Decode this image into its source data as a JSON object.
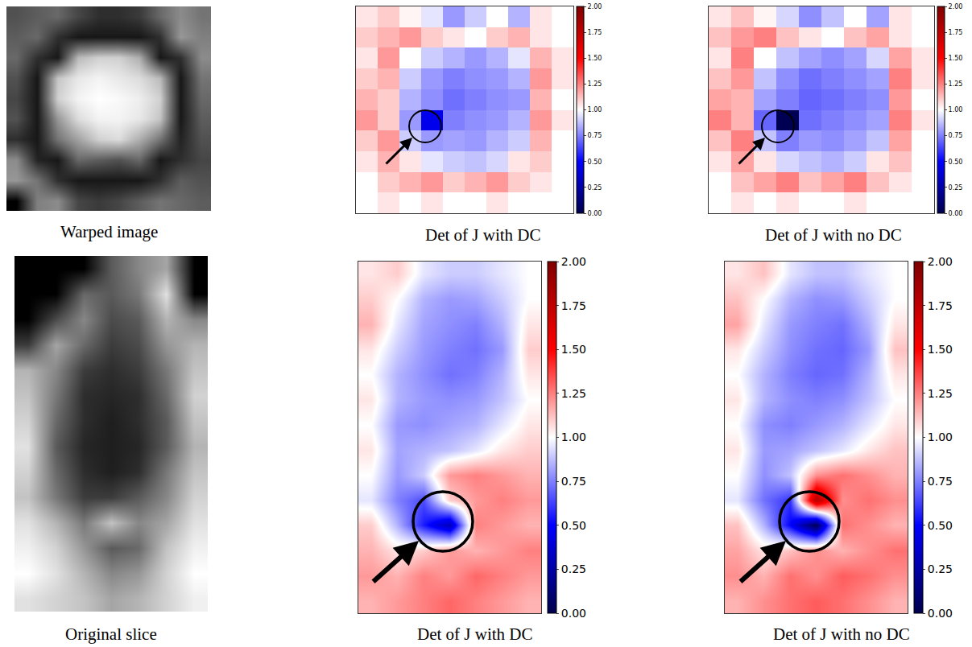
{
  "chart_data": [
    {
      "type": "heatmap",
      "title": "Warped image",
      "color": "gray",
      "tick_labels": false,
      "cells": [
        [
          90,
          100,
          110,
          80,
          60,
          60,
          70,
          110,
          140,
          120
        ],
        [
          100,
          110,
          60,
          40,
          40,
          40,
          40,
          60,
          150,
          130
        ],
        [
          110,
          60,
          40,
          180,
          200,
          200,
          170,
          40,
          60,
          140
        ],
        [
          90,
          40,
          190,
          220,
          230,
          220,
          210,
          180,
          40,
          120
        ],
        [
          80,
          40,
          200,
          230,
          240,
          235,
          225,
          200,
          40,
          110
        ],
        [
          90,
          40,
          150,
          210,
          230,
          230,
          220,
          190,
          40,
          100
        ],
        [
          60,
          40,
          120,
          160,
          200,
          210,
          170,
          120,
          50,
          90
        ],
        [
          140,
          50,
          40,
          110,
          100,
          90,
          110,
          40,
          60,
          80
        ],
        [
          150,
          120,
          60,
          40,
          40,
          40,
          40,
          60,
          100,
          90
        ],
        [
          20,
          130,
          140,
          80,
          70,
          80,
          100,
          120,
          110,
          100
        ]
      ]
    },
    {
      "type": "heatmap",
      "title": "Det of J with DC",
      "color": "seismic",
      "tick_labels": false,
      "zlim": [
        0,
        2
      ],
      "zticks": [
        {
          "value": 0,
          "label": "0.00"
        },
        {
          "value": 0.25,
          "label": "0.25"
        },
        {
          "value": 0.5,
          "label": "0.50"
        },
        {
          "value": 0.75,
          "label": "0.75"
        },
        {
          "value": 1,
          "label": "1.00"
        },
        {
          "value": 1.25,
          "label": "1.25"
        },
        {
          "value": 1.5,
          "label": "1.50"
        },
        {
          "value": 1.75,
          "label": "1.75"
        },
        {
          "value": 2,
          "label": "2.00"
        }
      ],
      "cells": [
        [
          1.05,
          1.1,
          1.02,
          0.95,
          0.8,
          0.9,
          1.0,
          0.85,
          1.05,
          1.0
        ],
        [
          1.1,
          1.15,
          1.2,
          1.1,
          1.05,
          1.0,
          1.1,
          1.15,
          1.05,
          1.0
        ],
        [
          1.05,
          1.2,
          1.0,
          0.9,
          0.85,
          0.8,
          0.85,
          0.95,
          1.15,
          1.05
        ],
        [
          1.1,
          1.15,
          0.9,
          0.8,
          0.75,
          0.78,
          0.8,
          0.85,
          1.2,
          1.05
        ],
        [
          1.15,
          1.1,
          0.85,
          0.78,
          0.72,
          0.75,
          0.78,
          0.8,
          1.15,
          1.0
        ],
        [
          1.2,
          1.1,
          0.8,
          0.45,
          0.75,
          0.78,
          0.8,
          0.85,
          1.2,
          1.05
        ],
        [
          1.1,
          1.2,
          0.9,
          0.8,
          0.82,
          0.8,
          0.85,
          0.9,
          1.15,
          1.0
        ],
        [
          1.05,
          1.15,
          1.05,
          0.95,
          0.9,
          0.88,
          0.92,
          1.05,
          1.1,
          1.0
        ],
        [
          1.0,
          1.1,
          1.15,
          1.2,
          1.1,
          1.15,
          1.2,
          1.1,
          1.05,
          1.0
        ],
        [
          1.0,
          1.05,
          1.0,
          1.05,
          1.0,
          1.0,
          1.05,
          1.0,
          1.0,
          1.0
        ]
      ]
    },
    {
      "type": "heatmap",
      "title": "Det of J with no DC",
      "color": "seismic",
      "tick_labels": false,
      "zlim": [
        0,
        2
      ],
      "zticks": [
        {
          "value": 0,
          "label": "0.00"
        },
        {
          "value": 0.25,
          "label": "0.25"
        },
        {
          "value": 0.5,
          "label": "0.50"
        },
        {
          "value": 0.75,
          "label": "0.75"
        },
        {
          "value": 1,
          "label": "1.00"
        },
        {
          "value": 1.25,
          "label": "1.25"
        },
        {
          "value": 1.5,
          "label": "1.50"
        },
        {
          "value": 1.75,
          "label": "1.75"
        },
        {
          "value": 2,
          "label": "2.00"
        }
      ],
      "cells": [
        [
          1.05,
          1.12,
          1.02,
          0.92,
          0.78,
          0.88,
          1.0,
          0.82,
          1.05,
          1.0
        ],
        [
          1.12,
          1.2,
          1.25,
          1.12,
          1.05,
          1.0,
          1.12,
          1.18,
          1.05,
          1.0
        ],
        [
          1.05,
          1.25,
          1.0,
          0.88,
          0.82,
          0.78,
          0.82,
          0.92,
          1.18,
          1.05
        ],
        [
          1.12,
          1.2,
          0.88,
          0.78,
          0.72,
          0.75,
          0.78,
          0.82,
          1.25,
          1.05
        ],
        [
          1.18,
          1.15,
          0.82,
          0.75,
          0.7,
          0.72,
          0.75,
          0.78,
          1.2,
          1.0
        ],
        [
          1.25,
          1.15,
          0.7,
          0.02,
          0.72,
          0.75,
          0.78,
          0.82,
          1.25,
          1.05
        ],
        [
          1.12,
          1.25,
          0.88,
          0.75,
          0.8,
          0.78,
          0.82,
          0.88,
          1.18,
          1.0
        ],
        [
          1.05,
          1.18,
          1.05,
          0.92,
          0.88,
          0.85,
          0.9,
          1.05,
          1.12,
          1.0
        ],
        [
          1.0,
          1.12,
          1.18,
          1.25,
          1.12,
          1.18,
          1.25,
          1.12,
          1.05,
          1.0
        ],
        [
          1.0,
          1.05,
          1.0,
          1.05,
          1.0,
          1.0,
          1.05,
          1.0,
          1.0,
          1.0
        ]
      ]
    },
    {
      "type": "heatmap",
      "title": "Original slice",
      "color": "gray",
      "tick_labels": false,
      "cells": [
        [
          0,
          0,
          0,
          60,
          90,
          110,
          0
        ],
        [
          0,
          0,
          70,
          60,
          80,
          150,
          0
        ],
        [
          0,
          50,
          90,
          50,
          60,
          120,
          90
        ],
        [
          40,
          110,
          70,
          40,
          50,
          100,
          120
        ],
        [
          120,
          90,
          40,
          30,
          40,
          80,
          130
        ],
        [
          130,
          80,
          30,
          25,
          30,
          70,
          140
        ],
        [
          140,
          70,
          30,
          20,
          30,
          60,
          130
        ],
        [
          150,
          60,
          25,
          20,
          25,
          60,
          120
        ],
        [
          140,
          70,
          30,
          20,
          30,
          80,
          130
        ],
        [
          130,
          80,
          40,
          40,
          60,
          90,
          140
        ],
        [
          150,
          120,
          80,
          130,
          90,
          110,
          150
        ],
        [
          160,
          140,
          100,
          60,
          70,
          130,
          160
        ],
        [
          170,
          150,
          120,
          90,
          100,
          140,
          170
        ],
        [
          150,
          140,
          130,
          110,
          120,
          140,
          160
        ]
      ]
    },
    {
      "type": "heatmap",
      "title": "Det of J with DC",
      "color": "seismic",
      "tick_labels": false,
      "zlim": [
        0,
        2
      ],
      "zticks": [
        {
          "value": 0,
          "label": "0.00"
        },
        {
          "value": 0.25,
          "label": "0.25"
        },
        {
          "value": 0.5,
          "label": "0.50"
        },
        {
          "value": 0.75,
          "label": "0.75"
        },
        {
          "value": 1,
          "label": "1.00"
        },
        {
          "value": 1.25,
          "label": "1.25"
        },
        {
          "value": 1.5,
          "label": "1.50"
        },
        {
          "value": 1.75,
          "label": "1.75"
        },
        {
          "value": 2,
          "label": "2.00"
        }
      ],
      "cells": [
        [
          1.05,
          1.1,
          0.95,
          0.9,
          0.9,
          0.95,
          1.0
        ],
        [
          1.1,
          1.0,
          0.85,
          0.8,
          0.82,
          0.9,
          1.0
        ],
        [
          1.15,
          0.95,
          0.82,
          0.78,
          0.75,
          0.85,
          1.05
        ],
        [
          1.05,
          0.9,
          0.8,
          0.75,
          0.72,
          0.8,
          1.1
        ],
        [
          1.0,
          0.85,
          0.78,
          0.72,
          0.75,
          0.85,
          1.05
        ],
        [
          1.05,
          0.85,
          0.8,
          0.78,
          0.8,
          0.88,
          1.0
        ],
        [
          1.0,
          0.8,
          0.78,
          0.82,
          0.85,
          0.95,
          1.05
        ],
        [
          1.05,
          0.82,
          0.85,
          0.88,
          0.95,
          1.05,
          1.1
        ],
        [
          1.0,
          0.8,
          0.9,
          1.2,
          1.25,
          1.2,
          1.15
        ],
        [
          0.95,
          0.75,
          0.65,
          1.1,
          1.2,
          1.25,
          1.2
        ],
        [
          1.1,
          0.85,
          0.55,
          0.3,
          1.25,
          1.2,
          1.15
        ],
        [
          1.15,
          1.05,
          1.1,
          1.2,
          1.15,
          1.2,
          1.25
        ],
        [
          1.2,
          1.15,
          1.25,
          1.2,
          1.3,
          1.25,
          1.2
        ],
        [
          1.15,
          1.2,
          1.25,
          1.3,
          1.25,
          1.2,
          1.15
        ]
      ]
    },
    {
      "type": "heatmap",
      "title": "Det of J with no DC",
      "color": "seismic",
      "tick_labels": false,
      "zlim": [
        0,
        2
      ],
      "zticks": [
        {
          "value": 0,
          "label": "0.00"
        },
        {
          "value": 0.25,
          "label": "0.25"
        },
        {
          "value": 0.5,
          "label": "0.50"
        },
        {
          "value": 0.75,
          "label": "0.75"
        },
        {
          "value": 1,
          "label": "1.00"
        },
        {
          "value": 1.25,
          "label": "1.25"
        },
        {
          "value": 1.5,
          "label": "1.50"
        },
        {
          "value": 1.75,
          "label": "1.75"
        },
        {
          "value": 2,
          "label": "2.00"
        }
      ],
      "cells": [
        [
          1.05,
          1.12,
          0.95,
          0.88,
          0.88,
          0.95,
          1.0
        ],
        [
          1.12,
          1.0,
          0.85,
          0.78,
          0.8,
          0.9,
          1.0
        ],
        [
          1.18,
          0.95,
          0.8,
          0.75,
          0.72,
          0.85,
          1.05
        ],
        [
          1.05,
          0.9,
          0.78,
          0.72,
          0.7,
          0.8,
          1.12
        ],
        [
          1.0,
          0.85,
          0.75,
          0.7,
          0.72,
          0.85,
          1.05
        ],
        [
          1.05,
          0.85,
          0.78,
          0.75,
          0.78,
          0.88,
          1.0
        ],
        [
          1.0,
          0.78,
          0.75,
          0.8,
          0.85,
          0.95,
          1.05
        ],
        [
          1.05,
          0.8,
          0.82,
          0.88,
          0.95,
          1.05,
          1.12
        ],
        [
          1.0,
          0.78,
          0.88,
          1.22,
          1.28,
          1.22,
          1.15
        ],
        [
          0.95,
          0.72,
          0.6,
          1.8,
          1.22,
          1.28,
          1.22
        ],
        [
          1.12,
          0.85,
          0.5,
          0.02,
          1.28,
          1.22,
          1.15
        ],
        [
          1.18,
          1.05,
          1.12,
          1.22,
          1.15,
          1.22,
          1.28
        ],
        [
          1.22,
          1.15,
          1.28,
          1.22,
          1.32,
          1.28,
          1.22
        ],
        [
          1.15,
          1.22,
          1.28,
          1.32,
          1.28,
          1.22,
          1.15
        ]
      ]
    }
  ]
}
